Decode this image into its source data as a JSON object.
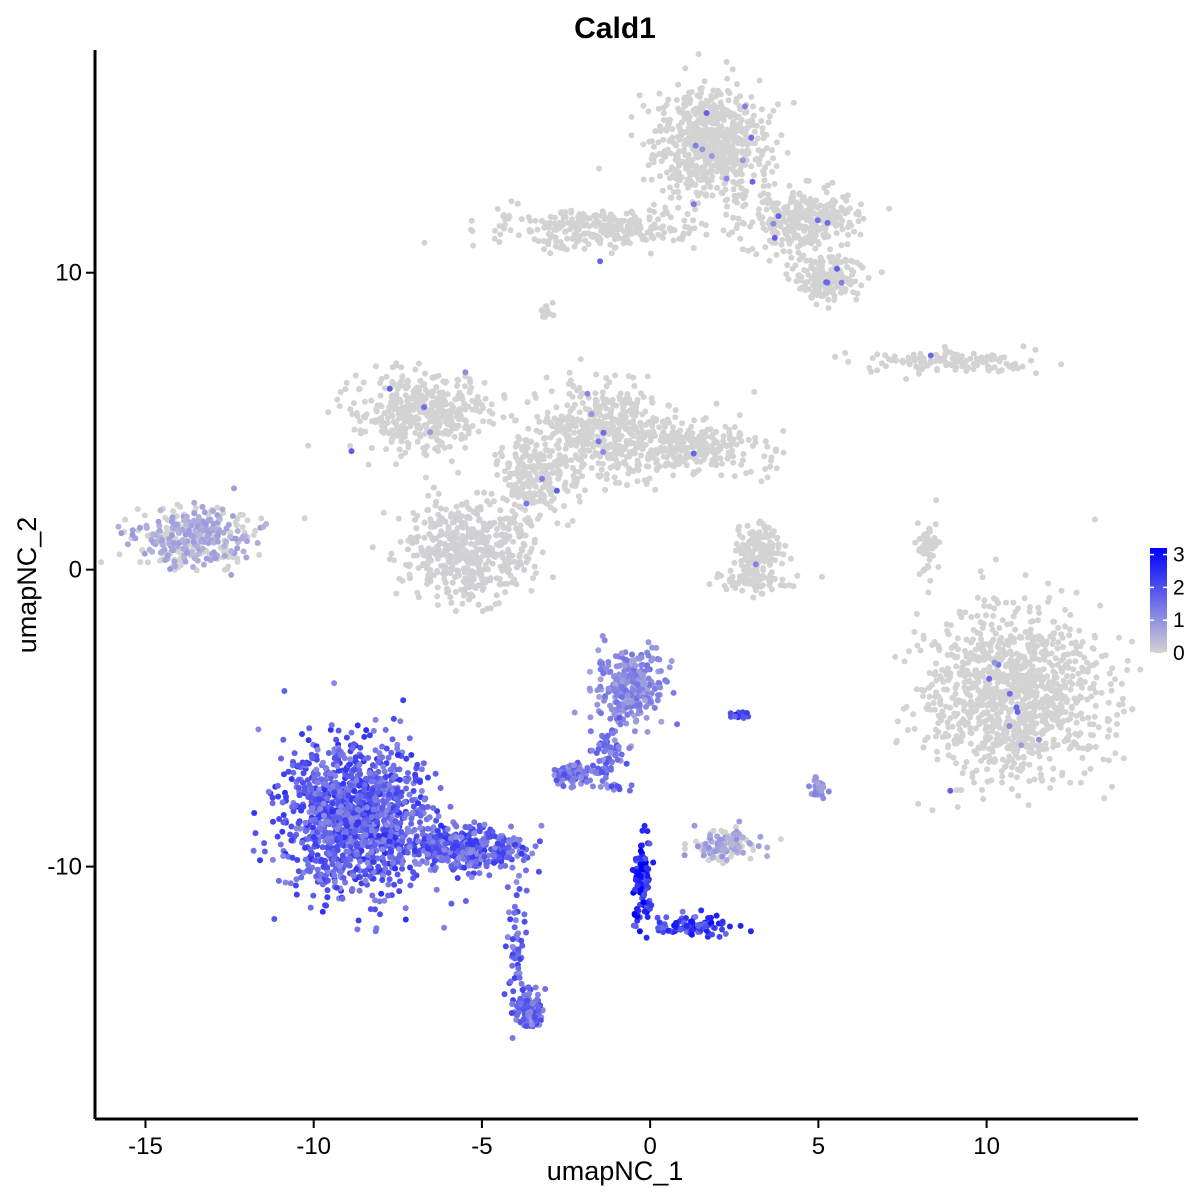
{
  "chart_data": {
    "type": "scatter",
    "title": "Cald1",
    "xlabel": "umapNC_1",
    "ylabel": "umapNC_2",
    "xlim": [
      -16.5,
      14.5
    ],
    "ylim": [
      -18.5,
      17.5
    ],
    "x_ticks": [
      -15,
      -10,
      -5,
      0,
      5,
      10
    ],
    "x_tick_labels": [
      "-15",
      "-10",
      "-5",
      "0",
      "5",
      "10"
    ],
    "y_ticks": [
      -10,
      0,
      10
    ],
    "y_tick_labels": [
      "-10",
      "0",
      "10"
    ],
    "grid": false,
    "legend": {
      "placement": "right",
      "type": "colorbar",
      "ticks": [
        0,
        1,
        2,
        3
      ],
      "tick_labels": [
        "0",
        "1",
        "2",
        "3"
      ],
      "color_low": "#d3d3d3",
      "color_high": "#0000ff",
      "max": 3.2
    },
    "clusters": [
      {
        "name": "top_blob",
        "x": 1.8,
        "y": 14.3,
        "rx": 1.5,
        "ry": 1.7,
        "n": 700,
        "expr": 0.0
      },
      {
        "name": "top_right_tail",
        "x": 4.6,
        "y": 11.8,
        "rx": 1.4,
        "ry": 0.9,
        "n": 320,
        "expr": 0.0
      },
      {
        "name": "top_right_lobe",
        "x": 5.2,
        "y": 9.8,
        "rx": 0.9,
        "ry": 0.7,
        "n": 180,
        "expr": 0.0
      },
      {
        "name": "top_left_arm",
        "x": -1.6,
        "y": 11.5,
        "rx": 2.8,
        "ry": 0.6,
        "n": 280,
        "expr": 0.0
      },
      {
        "name": "small_top_left",
        "x": -3.1,
        "y": 8.7,
        "rx": 0.15,
        "ry": 0.3,
        "n": 15,
        "expr": 0.0
      },
      {
        "name": "right_strip",
        "x": 9.0,
        "y": 7.0,
        "rx": 2.4,
        "ry": 0.35,
        "n": 130,
        "expr": 0.0
      },
      {
        "name": "mid_left_arm",
        "x": -6.8,
        "y": 5.3,
        "rx": 1.8,
        "ry": 1.2,
        "n": 420,
        "expr": 0.0
      },
      {
        "name": "mid_center_right",
        "x": -1.3,
        "y": 4.6,
        "rx": 1.8,
        "ry": 1.5,
        "n": 460,
        "expr": 0.0
      },
      {
        "name": "mid_right_arm",
        "x": 1.2,
        "y": 4.1,
        "rx": 1.8,
        "ry": 0.8,
        "n": 260,
        "expr": 0.0
      },
      {
        "name": "mid_lower_blob",
        "x": -5.5,
        "y": 0.6,
        "rx": 1.7,
        "ry": 1.5,
        "n": 500,
        "expr": 0.05
      },
      {
        "name": "mid_center_stem",
        "x": -3.5,
        "y": 3.0,
        "rx": 1.0,
        "ry": 1.4,
        "n": 220,
        "expr": 0.0
      },
      {
        "name": "small_mid_right",
        "x": 3.2,
        "y": 0.7,
        "rx": 0.6,
        "ry": 0.9,
        "n": 150,
        "expr": 0.0
      },
      {
        "name": "small_mid_right_base",
        "x": 3.0,
        "y": -0.4,
        "rx": 1.0,
        "ry": 0.35,
        "n": 70,
        "expr": 0.0
      },
      {
        "name": "thin_right",
        "x": 8.3,
        "y": 0.7,
        "rx": 0.3,
        "ry": 0.9,
        "n": 50,
        "expr": 0.0
      },
      {
        "name": "left_blob",
        "x": -13.6,
        "y": 1.1,
        "rx": 1.6,
        "ry": 0.9,
        "n": 350,
        "expr": 0.7
      },
      {
        "name": "right_big_blob",
        "x": 10.8,
        "y": -4.2,
        "rx": 2.3,
        "ry": 2.5,
        "n": 1100,
        "expr": 0.0
      },
      {
        "name": "center_upper_expr",
        "x": -0.6,
        "y": -3.9,
        "rx": 0.9,
        "ry": 1.1,
        "n": 300,
        "expr": 1.2
      },
      {
        "name": "center_arm_expr",
        "x": -1.3,
        "y": -6.1,
        "rx": 0.5,
        "ry": 0.8,
        "n": 60,
        "expr": 1.6
      },
      {
        "name": "small_left_expr",
        "x": -2.3,
        "y": -6.9,
        "rx": 0.6,
        "ry": 0.3,
        "n": 90,
        "expr": 1.6
      },
      {
        "name": "main_expr_blob",
        "x": -8.8,
        "y": -8.4,
        "rx": 1.9,
        "ry": 2.2,
        "n": 1300,
        "expr": 2.0
      },
      {
        "name": "main_expr_tail",
        "x": -5.4,
        "y": -9.4,
        "rx": 1.6,
        "ry": 0.7,
        "n": 350,
        "expr": 1.9
      },
      {
        "name": "expr_stalk",
        "x": -4.0,
        "y": -12.8,
        "rx": 0.3,
        "ry": 1.8,
        "n": 60,
        "expr": 1.8
      },
      {
        "name": "expr_bottom_blob",
        "x": -3.6,
        "y": -14.8,
        "rx": 0.35,
        "ry": 0.6,
        "n": 90,
        "expr": 1.8
      },
      {
        "name": "high_expr_branch",
        "x": -0.2,
        "y": -10.5,
        "rx": 0.25,
        "ry": 1.3,
        "n": 110,
        "expr": 3.0
      },
      {
        "name": "high_expr_arm",
        "x": 1.3,
        "y": -12.0,
        "rx": 1.2,
        "ry": 0.35,
        "n": 90,
        "expr": 2.4
      },
      {
        "name": "small_right_mixed",
        "x": 2.2,
        "y": -9.3,
        "rx": 0.8,
        "ry": 0.5,
        "n": 120,
        "expr": 0.8
      },
      {
        "name": "tiny_right_expr",
        "x": 5.0,
        "y": -7.4,
        "rx": 0.2,
        "ry": 0.3,
        "n": 25,
        "expr": 1.0
      },
      {
        "name": "tiny_expr_b",
        "x": 2.7,
        "y": -4.9,
        "rx": 0.3,
        "ry": 0.1,
        "n": 20,
        "expr": 2.3
      },
      {
        "name": "tiny_expr_c",
        "x": -1.1,
        "y": -7.3,
        "rx": 0.4,
        "ry": 0.1,
        "n": 15,
        "expr": 1.7
      }
    ]
  }
}
